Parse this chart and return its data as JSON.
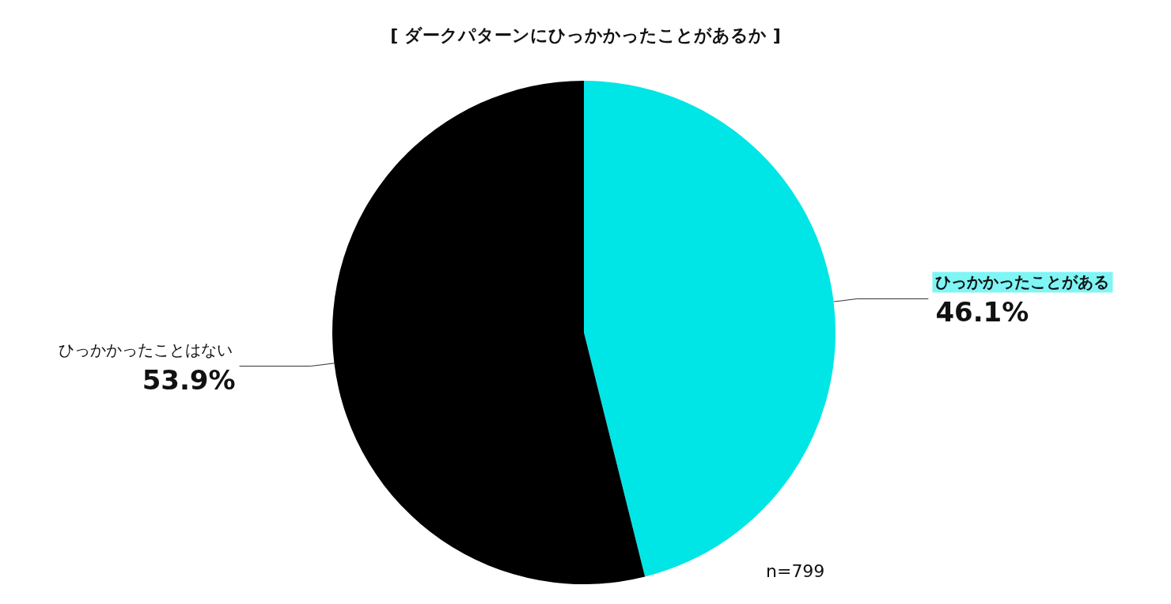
{
  "chart_data": {
    "type": "pie",
    "title": "[ ダークパターンにひっかかったことがあるか ]",
    "categories": [
      "ひっかかったことがある",
      "ひっかかったことはない"
    ],
    "values": [
      46.1,
      53.9
    ],
    "colors": [
      "#00e5e5",
      "#000000"
    ],
    "value_labels": [
      "46.1%",
      "53.9%"
    ],
    "annotations": [
      "n=799"
    ],
    "legend": false
  }
}
